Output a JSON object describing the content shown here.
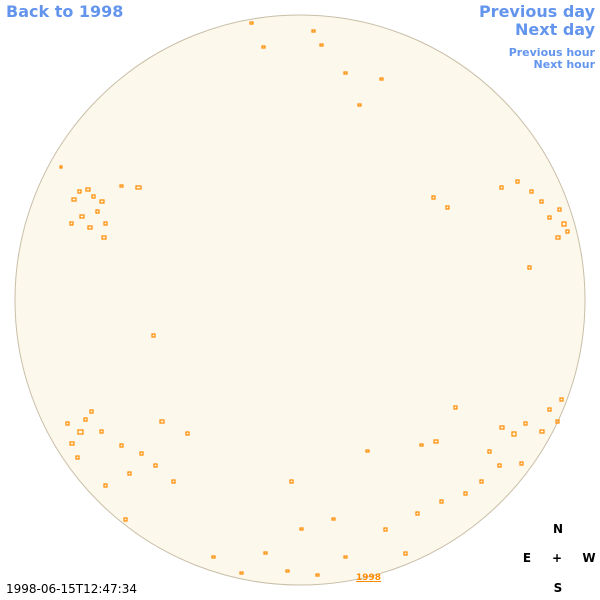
{
  "nav": {
    "back": "Back to 1998",
    "previous_day": "Previous day",
    "next_day": "Next day",
    "previous_hour": "Previous hour",
    "next_hour": "Next hour"
  },
  "timestamp": "1998-06-15T12:47:34",
  "year_link": "1998",
  "compass": {
    "north": "N",
    "east": "E",
    "center": "+",
    "west": "W",
    "south": "S"
  }
}
